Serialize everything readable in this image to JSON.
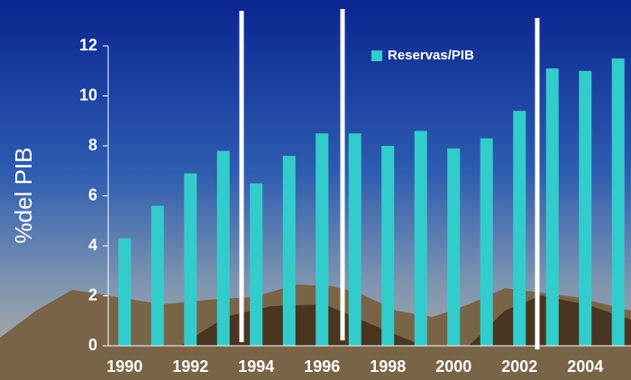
{
  "chart_data": {
    "type": "bar",
    "y_label": "%del PIB",
    "categories": [
      "1990",
      null,
      "1992",
      null,
      "1994",
      null,
      "1996",
      null,
      "1998",
      null,
      "2000",
      null,
      "2002",
      null,
      "2004",
      null
    ],
    "series": [
      {
        "name": "Reservas/PIB",
        "color": "#33cccc",
        "values": [
          4.3,
          5.6,
          6.9,
          7.8,
          6.5,
          7.6,
          8.5,
          8.5,
          8.0,
          8.6,
          7.9,
          8.3,
          9.4,
          11.1,
          11.0,
          11.5
        ]
      }
    ],
    "ylim": [
      0,
      12
    ],
    "yticks": [
      0,
      2,
      4,
      6,
      8,
      10,
      12
    ]
  }
}
